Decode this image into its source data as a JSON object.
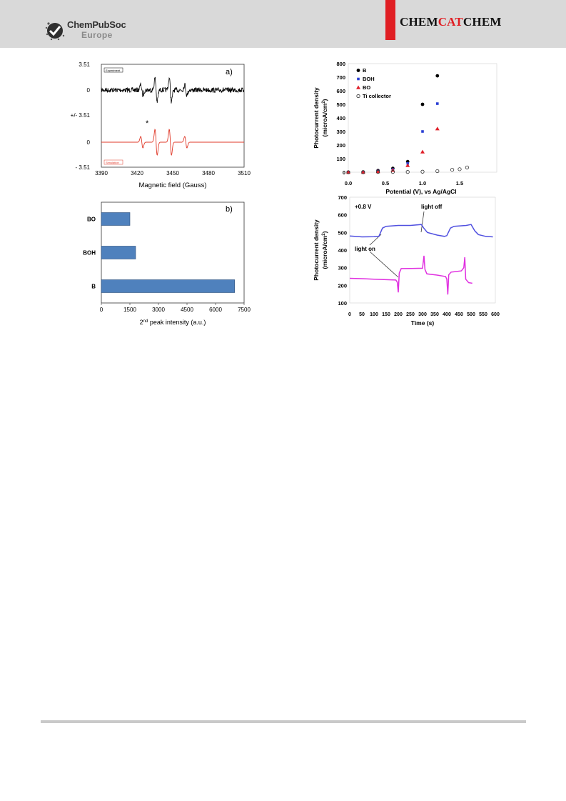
{
  "header": {
    "publisher": "ChemPubSoc",
    "publisher_sub": "Europe",
    "journal": {
      "part1": "CHEM",
      "part2": "CAT",
      "part3": "CHEM"
    },
    "accent_color": "#e01e23"
  },
  "chart_data": [
    {
      "id": "epr",
      "type": "line",
      "panel_label": "a)",
      "xlabel": "Magnetic field (Gauss)",
      "x_ticks": [
        "3390",
        "3420",
        "3450",
        "3480",
        "3510"
      ],
      "xlim": [
        3390,
        3510
      ],
      "y_ticks": [
        "3.51",
        "0",
        "+/- 3.51",
        "0",
        "- 3.51"
      ],
      "annotation": "*",
      "series": [
        {
          "name": "Experiment",
          "color": "#000000"
        },
        {
          "name": "Simulation",
          "color": "#e03a2a"
        }
      ]
    },
    {
      "id": "epr-bars",
      "type": "bar",
      "orientation": "horizontal",
      "panel_label": "b)",
      "categories": [
        "BO",
        "BOH",
        "B"
      ],
      "values": [
        1500,
        1800,
        7000
      ],
      "xlabel_main": "2",
      "xlabel_sup": "nd",
      "xlabel_rest": " peak intensity (a.u.)",
      "xlim": [
        0,
        7500
      ],
      "x_ticks": [
        "0",
        "1500",
        "3000",
        "4500",
        "6000",
        "7500"
      ],
      "bar_color": "#4f81bd"
    },
    {
      "id": "potential",
      "type": "scatter",
      "xlabel": "Potential (V), vs Ag/AgCl",
      "ylabel_line1": "Photocurrent density",
      "ylabel_line2": "(microA/cm",
      "ylabel_sup": "2",
      "ylabel_end": ")",
      "xlim": [
        0,
        2.0
      ],
      "ylim": [
        0,
        800
      ],
      "x_ticks": [
        "0.0",
        "0.5",
        "1.0",
        "1.5"
      ],
      "y_ticks": [
        "0",
        "100",
        "200",
        "300",
        "400",
        "500",
        "600",
        "700",
        "800"
      ],
      "series": [
        {
          "name": "B",
          "marker": "circle",
          "color": "#000000",
          "points": [
            [
              0,
              0
            ],
            [
              0.2,
              2
            ],
            [
              0.4,
              12
            ],
            [
              0.6,
              28
            ],
            [
              0.8,
              78
            ],
            [
              1.0,
              500
            ],
            [
              1.2,
              710
            ]
          ]
        },
        {
          "name": "BOH",
          "marker": "square",
          "color": "#2a3fd4",
          "points": [
            [
              0,
              0
            ],
            [
              0.2,
              0
            ],
            [
              0.4,
              8
            ],
            [
              0.6,
              20
            ],
            [
              0.8,
              65
            ],
            [
              1.0,
              300
            ],
            [
              1.2,
              505
            ]
          ]
        },
        {
          "name": "BO",
          "marker": "triangle",
          "color": "#e0202a",
          "points": [
            [
              0,
              0
            ],
            [
              0.2,
              0
            ],
            [
              0.4,
              5
            ],
            [
              0.6,
              15
            ],
            [
              0.8,
              50
            ],
            [
              1.0,
              150
            ],
            [
              1.2,
              320
            ]
          ]
        },
        {
          "name": "Ti collector",
          "marker": "open-circle",
          "color": "#333333",
          "points": [
            [
              0,
              0
            ],
            [
              0.2,
              0
            ],
            [
              0.4,
              2
            ],
            [
              0.6,
              2
            ],
            [
              0.8,
              2
            ],
            [
              1.0,
              4
            ],
            [
              1.2,
              8
            ],
            [
              1.4,
              18
            ],
            [
              1.5,
              22
            ],
            [
              1.6,
              35
            ]
          ]
        }
      ]
    },
    {
      "id": "chopped",
      "type": "line",
      "xlabel": "Time (s)",
      "ylabel_line1": "Photocurrent density",
      "ylabel_line2": "(microA/cm",
      "ylabel_sup": "2",
      "ylabel_end": ")",
      "xlim": [
        0,
        600
      ],
      "ylim": [
        100,
        700
      ],
      "x_ticks": [
        "0",
        "50",
        "100",
        "150",
        "200",
        "250",
        "300",
        "350",
        "400",
        "450",
        "500",
        "550",
        "600"
      ],
      "y_ticks": [
        "100",
        "200",
        "300",
        "400",
        "500",
        "600",
        "700"
      ],
      "annotations": {
        "bias": "+0.8 V",
        "light_on": "light on",
        "light_off": "light off"
      },
      "series": [
        {
          "color": "#5050e0",
          "points": [
            [
              0,
              480
            ],
            [
              50,
              475
            ],
            [
              100,
              476
            ],
            [
              120,
              478
            ],
            [
              135,
              525
            ],
            [
              150,
              535
            ],
            [
              200,
              540
            ],
            [
              250,
              540
            ],
            [
              295,
              545
            ],
            [
              305,
              525
            ],
            [
              320,
              500
            ],
            [
              360,
              485
            ],
            [
              390,
              478
            ],
            [
              400,
              482
            ],
            [
              415,
              525
            ],
            [
              430,
              535
            ],
            [
              480,
              540
            ],
            [
              500,
              545
            ],
            [
              515,
              510
            ],
            [
              530,
              488
            ],
            [
              560,
              478
            ],
            [
              590,
              475
            ]
          ]
        },
        {
          "color": "#e030e0",
          "points": [
            [
              0,
              240
            ],
            [
              50,
              238
            ],
            [
              100,
              235
            ],
            [
              150,
              232
            ],
            [
              190,
              230
            ],
            [
              196,
              218
            ],
            [
              200,
              160
            ],
            [
              204,
              270
            ],
            [
              212,
              295
            ],
            [
              250,
              296
            ],
            [
              300,
              297
            ],
            [
              306,
              368
            ],
            [
              310,
              290
            ],
            [
              318,
              265
            ],
            [
              360,
              258
            ],
            [
              395,
              250
            ],
            [
              400,
              235
            ],
            [
              404,
              148
            ],
            [
              408,
              260
            ],
            [
              418,
              275
            ],
            [
              460,
              282
            ],
            [
              470,
              300
            ],
            [
              474,
              360
            ],
            [
              478,
              235
            ],
            [
              490,
              215
            ],
            [
              505,
              212
            ]
          ]
        }
      ]
    }
  ]
}
